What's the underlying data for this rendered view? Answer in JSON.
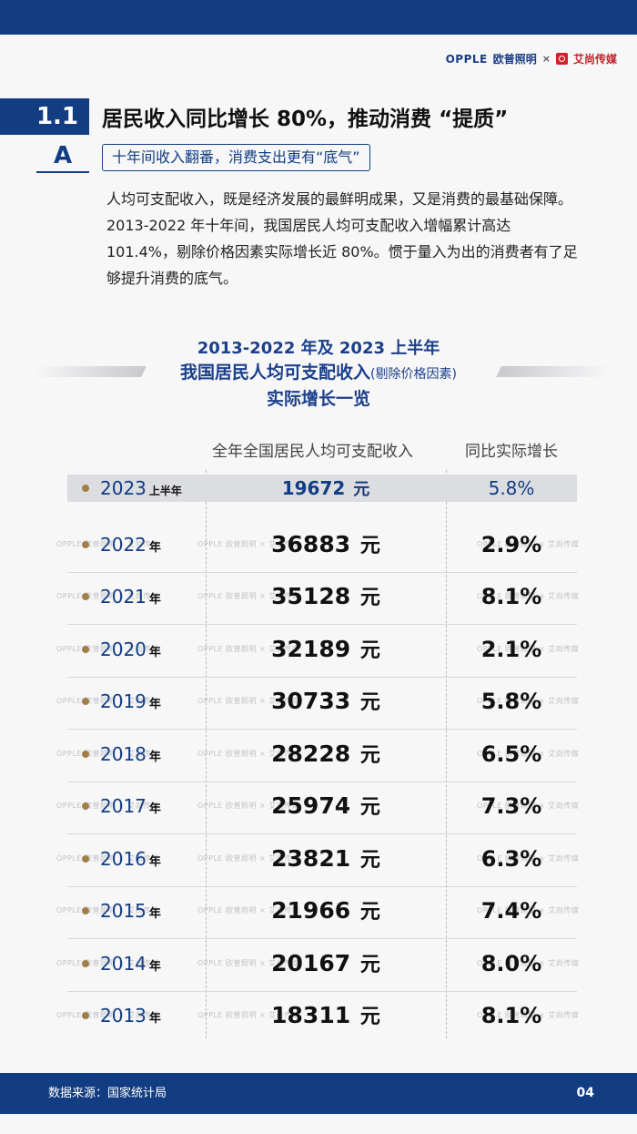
{
  "header": {
    "brand_opple": "OPPLE",
    "brand_opple_cn": "欧普照明",
    "times": "×",
    "brand_aishang": "艾尚传媒"
  },
  "section": {
    "number": "1.1",
    "title": "居民收入同比增长 80%，推动消费 “提质”",
    "sub_letter": "A",
    "sub_title": "十年间收入翻番，消费支出更有“底气”",
    "body": "人均可支配收入，既是经济发展的最鲜明成果，又是消费的最基础保障。2013-2022 年十年间，我国居民人均可支配收入增幅累计高达 101.4%，剔除价格因素实际增长近 80%。惯于量入为出的消费者有了足够提升消费的底气。"
  },
  "chart_title": {
    "line1": "2013-2022 年及 2023 上半年",
    "line2_main": "我国居民人均可支配收入",
    "line2_note": "(剔除价格因素)",
    "line3": "实际增长一览"
  },
  "table": {
    "col_income": "全年全国居民人均可支配收入",
    "col_growth": "同比实际增长",
    "watermark": "OPPLE 欧普照明 × 艾尚传媒",
    "rows": [
      {
        "year": "2023",
        "unit": "上半年",
        "income": "19672",
        "yuan": "元",
        "growth": "5.8%"
      },
      {
        "year": "2022",
        "unit": "年",
        "income": "36883",
        "yuan": "元",
        "growth": "2.9%"
      },
      {
        "year": "2021",
        "unit": "年",
        "income": "35128",
        "yuan": "元",
        "growth": "8.1%"
      },
      {
        "year": "2020",
        "unit": "年",
        "income": "32189",
        "yuan": "元",
        "growth": "2.1%"
      },
      {
        "year": "2019",
        "unit": "年",
        "income": "30733",
        "yuan": "元",
        "growth": "5.8%"
      },
      {
        "year": "2018",
        "unit": "年",
        "income": "28228",
        "yuan": "元",
        "growth": "6.5%"
      },
      {
        "year": "2017",
        "unit": "年",
        "income": "25974",
        "yuan": "元",
        "growth": "7.3%"
      },
      {
        "year": "2016",
        "unit": "年",
        "income": "23821",
        "yuan": "元",
        "growth": "6.3%"
      },
      {
        "year": "2015",
        "unit": "年",
        "income": "21966",
        "yuan": "元",
        "growth": "7.4%"
      },
      {
        "year": "2014",
        "unit": "年",
        "income": "20167",
        "yuan": "元",
        "growth": "8.0%"
      },
      {
        "year": "2013",
        "unit": "年",
        "income": "18311",
        "yuan": "元",
        "growth": "8.1%"
      }
    ]
  },
  "footer": {
    "source": "数据来源：国家统计局",
    "page": "04"
  },
  "colors": {
    "primary_blue": "#123d82",
    "dot_gold": "#a17f47",
    "highlight_row": "#dcdde1"
  }
}
